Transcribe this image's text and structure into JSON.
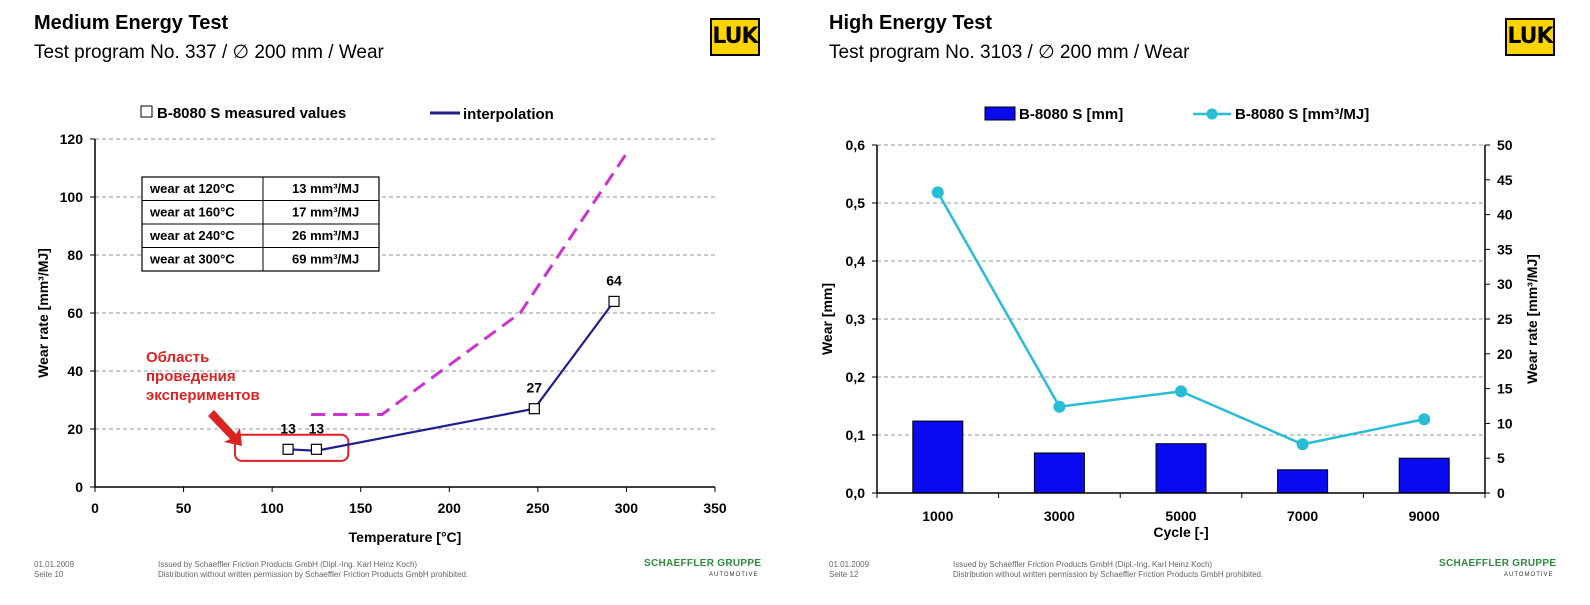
{
  "left": {
    "title": "Medium Energy Test",
    "subtitle": "Test program No. 337 / ∅ 200 mm / Wear",
    "logo": "LUK",
    "footer_date": "01.01.2009",
    "footer_page": "Seite 10",
    "footer_issued": "Issued by Schaeffler Friction Products GmbH (Dipl.-Ing. Karl Heinz Koch)",
    "footer_distribution": "Distribution without written permission by Schaeffler Friction Products GmbH prohibited.",
    "brand": "SCHAEFFLER GRUPPE",
    "brand_sub": "AUTOMOTIVE",
    "annotation": [
      "Область",
      "проведения",
      "экспериментов"
    ],
    "table": [
      [
        "wear at 120°C",
        "13 mm³/MJ"
      ],
      [
        "wear at 160°C",
        "17 mm³/MJ"
      ],
      [
        "wear at 240°C",
        "26 mm³/MJ"
      ],
      [
        "wear at 300°C",
        "69 mm³/MJ"
      ]
    ]
  },
  "right": {
    "title": "High Energy Test",
    "subtitle": "Test program No. 3103 / ∅ 200 mm / Wear",
    "logo": "LUK",
    "footer_date": "01.01.2009",
    "footer_page": "Seite 12",
    "footer_issued": "Issued by Schaeffler Friction Products GmbH (Dipl.-Ing. Karl Heinz Koch)",
    "footer_distribution": "Distribution without written permission by Schaeffler Friction Products GmbH prohibited.",
    "brand": "SCHAEFFLER GRUPPE",
    "brand_sub": "AUTOMOTIVE"
  },
  "chart_data": [
    {
      "type": "line",
      "xlabel": "Temperature [°C]",
      "ylabel": "Wear rate [mm³/MJ]",
      "xlim": [
        0,
        350
      ],
      "ylim": [
        0,
        120
      ],
      "xticks": [
        0,
        50,
        100,
        150,
        200,
        250,
        300,
        350
      ],
      "yticks": [
        0,
        20,
        40,
        60,
        80,
        100,
        120
      ],
      "grid": true,
      "legend": [
        "B-8080 S  measured values",
        "interpolation"
      ],
      "legend_position": "top",
      "series": [
        {
          "name": "B-8080 S  measured values",
          "style": "markers",
          "x": [
            109,
            125,
            248,
            293
          ],
          "y": [
            13,
            13,
            27,
            64
          ],
          "labels": [
            "13",
            "13",
            "27",
            "64"
          ],
          "color": "#000000"
        },
        {
          "name": "interpolation",
          "style": "line",
          "x": [
            109,
            125,
            248,
            293
          ],
          "y": [
            13,
            12.5,
            27,
            64
          ],
          "color": "#1f1f8f"
        },
        {
          "style": "dashed",
          "x": [
            122,
            162,
            240,
            300
          ],
          "y": [
            25,
            25,
            60,
            115
          ],
          "color": "#cc33cc"
        }
      ],
      "highlight": {
        "x": [
          79,
          143
        ],
        "y": [
          9,
          18
        ],
        "color": "#dd2222"
      }
    },
    {
      "type": "bar+line",
      "categories": [
        "1000",
        "3000",
        "5000",
        "7000",
        "9000"
      ],
      "xlabel": "Cycle [-]",
      "ylabel": "Wear [mm]",
      "y2label": "Wear rate [mm³/MJ]",
      "ylim": [
        0,
        0.6
      ],
      "y2lim": [
        0,
        50
      ],
      "yticks": [
        "0,0",
        "0,1",
        "0,2",
        "0,3",
        "0,4",
        "0,5",
        "0,6"
      ],
      "y2ticks": [
        "0",
        "5",
        "10",
        "15",
        "20",
        "25",
        "30",
        "35",
        "40",
        "45",
        "50"
      ],
      "grid": true,
      "legend_position": "top",
      "series": [
        {
          "name": "B-8080 S [mm]",
          "type": "bar",
          "axis": "left",
          "values": [
            0.124,
            0.069,
            0.085,
            0.04,
            0.06
          ],
          "color": "#0a0af0"
        },
        {
          "name": "B-8080 S [mm³/MJ]",
          "type": "line",
          "axis": "right",
          "values": [
            43.2,
            12.4,
            14.6,
            7.0,
            10.6
          ],
          "color": "#29bcd6"
        }
      ]
    }
  ]
}
